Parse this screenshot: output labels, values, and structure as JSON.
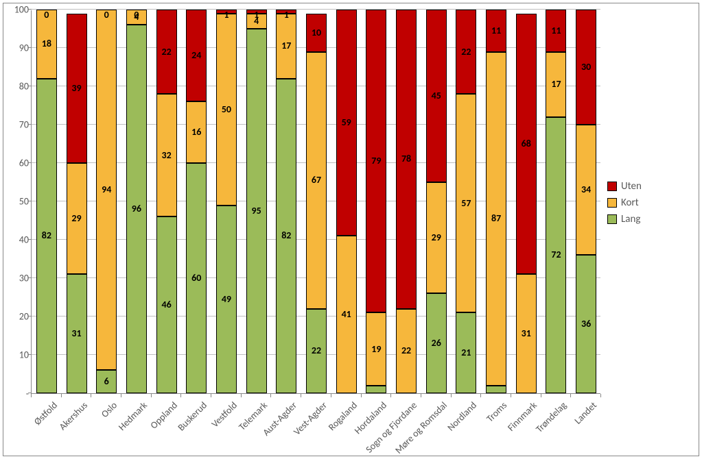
{
  "chart": {
    "type": "stacked-bar",
    "ylim": [
      0,
      100
    ],
    "ytick_step": 10,
    "ytick_dash": "-",
    "background_color": "#ffffff",
    "grid_color": "#bfbfbf",
    "axis_color": "#888888",
    "label_color": "#595959",
    "bar_border_color": "#000000",
    "value_label_color": "#000000",
    "value_label_fontsize": 14,
    "axis_label_fontsize": 14,
    "categories": [
      "Østfold",
      "Akershus",
      "Oslo",
      "Hedmark",
      "Oppland",
      "Buskerud",
      "Vestfold",
      "Telemark",
      "Aust-Agder",
      "Vest-Agder",
      "Rogaland",
      "Hordaland",
      "Sogn og Fjordane",
      "Møre og Romsdal",
      "Nordland",
      "Troms",
      "Finnmark",
      "Trøndelag",
      "Landet"
    ],
    "series": [
      {
        "key": "lang",
        "label": "Lang",
        "color": "#9bbb59"
      },
      {
        "key": "kort",
        "label": "Kort",
        "color": "#f6b73c"
      },
      {
        "key": "uten",
        "label": "Uten",
        "color": "#c00000"
      }
    ],
    "legend_order": [
      "uten",
      "kort",
      "lang"
    ],
    "data": [
      {
        "lang": 82,
        "kort": 18,
        "uten": 0
      },
      {
        "lang": 31,
        "kort": 29,
        "uten": 39
      },
      {
        "lang": 6,
        "kort": 94,
        "uten": 0
      },
      {
        "lang": 96,
        "kort": 4,
        "uten": 0
      },
      {
        "lang": 46,
        "kort": 32,
        "uten": 22
      },
      {
        "lang": 60,
        "kort": 16,
        "uten": 24
      },
      {
        "lang": 49,
        "kort": 50,
        "uten": 1
      },
      {
        "lang": 95,
        "kort": 4,
        "uten": 1
      },
      {
        "lang": 82,
        "kort": 17,
        "uten": 1
      },
      {
        "lang": 22,
        "kort": 67,
        "uten": 10
      },
      {
        "lang": 0,
        "kort": 41,
        "uten": 59
      },
      {
        "lang": 2,
        "kort": 19,
        "uten": 79
      },
      {
        "lang": 0,
        "kort": 22,
        "uten": 78
      },
      {
        "lang": 26,
        "kort": 29,
        "uten": 45
      },
      {
        "lang": 21,
        "kort": 57,
        "uten": 22
      },
      {
        "lang": 2,
        "kort": 87,
        "uten": 11
      },
      {
        "lang": 0,
        "kort": 31,
        "uten": 68
      },
      {
        "lang": 72,
        "kort": 17,
        "uten": 11
      },
      {
        "lang": 36,
        "kort": 34,
        "uten": 30
      }
    ]
  }
}
